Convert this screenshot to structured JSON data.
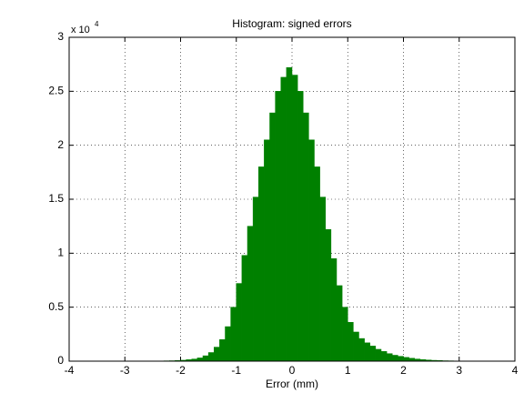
{
  "chart_data": {
    "type": "histogram",
    "title": "Histogram: signed errors",
    "xlabel": "Error (mm)",
    "y_exponent_base": "x 10",
    "y_exponent": "4",
    "bins": [
      -2.8,
      -2.7,
      -2.6,
      -2.5,
      -2.4,
      -2.3,
      -2.2,
      -2.1,
      -2.0,
      -1.9,
      -1.8,
      -1.7,
      -1.6,
      -1.5,
      -1.4,
      -1.3,
      -1.2,
      -1.1,
      -1.0,
      -0.9,
      -0.8,
      -0.7,
      -0.6,
      -0.5,
      -0.4,
      -0.3,
      -0.2,
      -0.1,
      0.0,
      0.1,
      0.2,
      0.3,
      0.4,
      0.5,
      0.6,
      0.7,
      0.8,
      0.9,
      1.0,
      1.1,
      1.2,
      1.3,
      1.4,
      1.5,
      1.6,
      1.7,
      1.8,
      1.9,
      2.0,
      2.1,
      2.2,
      2.3,
      2.4,
      2.5,
      2.6,
      2.7,
      2.8,
      2.9,
      3.0
    ],
    "values": [
      0.0005,
      0.001,
      0.001,
      0.0015,
      0.002,
      0.003,
      0.004,
      0.006,
      0.009,
      0.014,
      0.02,
      0.03,
      0.05,
      0.08,
      0.13,
      0.2,
      0.32,
      0.5,
      0.72,
      0.98,
      1.25,
      1.52,
      1.8,
      2.05,
      2.3,
      2.5,
      2.63,
      2.72,
      2.65,
      2.5,
      2.3,
      2.05,
      1.8,
      1.52,
      1.22,
      0.95,
      0.7,
      0.5,
      0.36,
      0.27,
      0.21,
      0.17,
      0.14,
      0.11,
      0.09,
      0.07,
      0.055,
      0.045,
      0.035,
      0.027,
      0.02,
      0.015,
      0.011,
      0.008,
      0.006,
      0.004,
      0.003,
      0.002
    ],
    "color": "#008000",
    "xlim": [
      -4,
      4
    ],
    "xticks": [
      -4,
      -3,
      -2,
      -1,
      0,
      1,
      2,
      3,
      4
    ],
    "ylim": [
      0,
      3
    ],
    "yticks": [
      0,
      0.5,
      1,
      1.5,
      2,
      2.5,
      3
    ],
    "grid": true
  }
}
